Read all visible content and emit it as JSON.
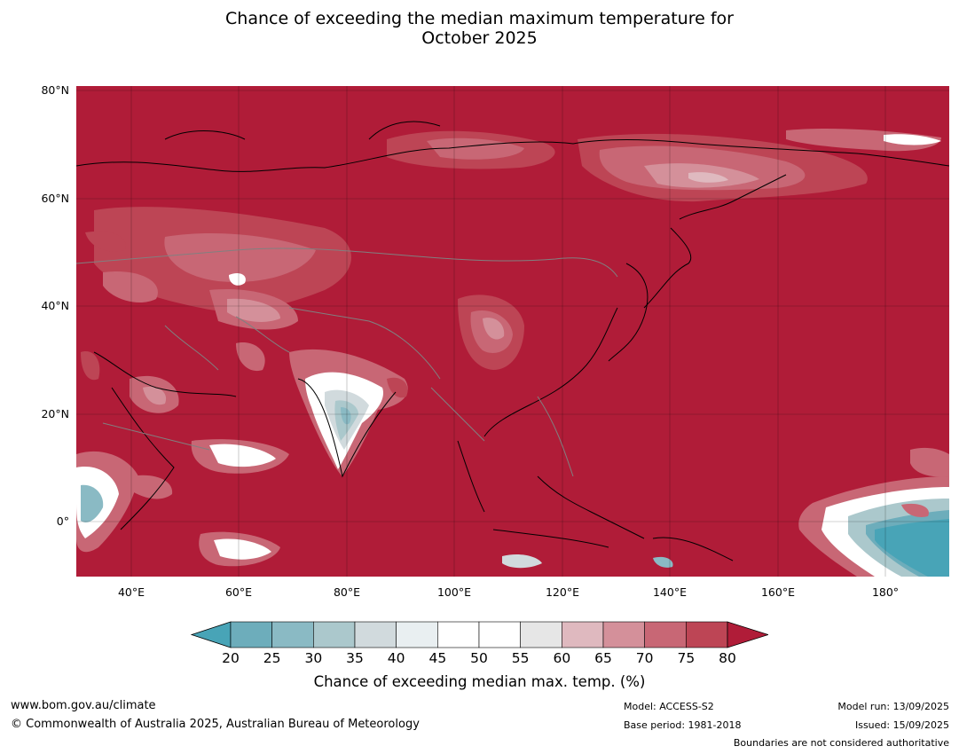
{
  "title_line1": "Chance of exceeding the median maximum temperature for",
  "title_line2": "October 2025",
  "lat_ticks": [
    "80°N",
    "60°N",
    "40°N",
    "20°N",
    "0°"
  ],
  "lon_ticks": [
    "40°E",
    "60°E",
    "80°E",
    "100°E",
    "120°E",
    "140°E",
    "160°E",
    "180°"
  ],
  "colorbar": {
    "ticks": [
      "20",
      "25",
      "30",
      "35",
      "40",
      "45",
      "50",
      "55",
      "60",
      "65",
      "70",
      "75",
      "80"
    ],
    "colors": [
      "#48a4b7",
      "#6dadbb",
      "#8abac4",
      "#abc8cc",
      "#d1dadd",
      "#e9eff1",
      "#ffffff",
      "#ffffff",
      "#e6e6e6",
      "#dfb9bf",
      "#d4909a",
      "#c86775",
      "#bd4555",
      "#b01c38"
    ],
    "title": "Chance of exceeding median max. temp. (%)"
  },
  "footer": {
    "url": "www.bom.gov.au/climate",
    "copyright": "© Commonwealth of Australia 2025, Australian Bureau of Meteorology",
    "model": "Model: ACCESS-S2",
    "base_period": "Base period: 1981-2018",
    "model_run": "Model run: 13/09/2025",
    "issued": "Issued: 15/09/2025",
    "disclaimer": "Boundaries are not considered authoritative"
  }
}
